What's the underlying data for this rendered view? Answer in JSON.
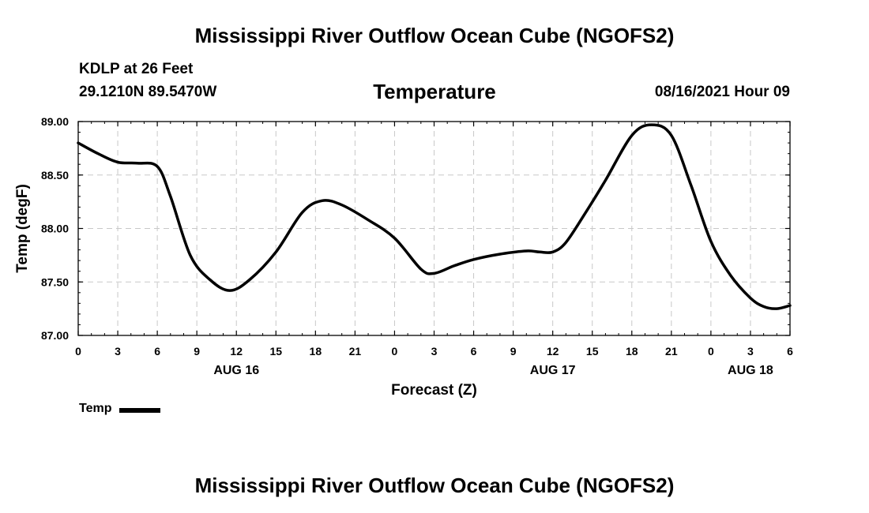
{
  "page": {
    "title_top": "Mississippi River Outflow Ocean Cube (NGOFS2)",
    "station": "KDLP at 26 Feet",
    "coords": "29.1210N  89.5470W",
    "subtitle": "Temperature",
    "datetime": "08/16/2021 Hour 09",
    "title_bottom": "Mississippi River Outflow Ocean Cube (NGOFS2)"
  },
  "legend": {
    "label": "Temp"
  },
  "chart_data": {
    "type": "line",
    "title": "Temperature",
    "xlabel": "Forecast (Z)",
    "ylabel": "Temp (degF)",
    "xlim": [
      0,
      54
    ],
    "ylim": [
      87.0,
      89.0
    ],
    "x_ticks": [
      0,
      3,
      6,
      9,
      12,
      15,
      18,
      21,
      24,
      27,
      30,
      33,
      36,
      39,
      42,
      45,
      48,
      51,
      54
    ],
    "x_tick_labels": [
      "0",
      "3",
      "6",
      "9",
      "12",
      "15",
      "18",
      "21",
      "0",
      "3",
      "6",
      "9",
      "12",
      "15",
      "18",
      "21",
      "0",
      "3",
      "6"
    ],
    "y_ticks": [
      87.0,
      87.5,
      88.0,
      88.5,
      89.0
    ],
    "y_tick_labels": [
      "87.00",
      "87.50",
      "88.00",
      "88.50",
      "89.00"
    ],
    "date_labels": [
      {
        "x": 12,
        "label": "AUG 16"
      },
      {
        "x": 36,
        "label": "AUG 17"
      },
      {
        "x": 51,
        "label": "AUG 18"
      }
    ],
    "grid": true,
    "legend_position": "bottom-left",
    "series": [
      {
        "name": "Temp",
        "color": "#000000",
        "x": [
          0,
          1.5,
          3,
          4.5,
          6,
          7,
          8.5,
          10,
          11.5,
          13,
          15,
          17,
          18.5,
          20,
          22,
          24,
          26,
          27,
          28.5,
          30,
          32,
          34,
          35,
          36,
          37,
          38.5,
          40,
          42,
          43.5,
          45,
          46.5,
          48,
          49.5,
          51,
          52,
          53,
          54
        ],
        "values": [
          88.8,
          88.7,
          88.62,
          88.61,
          88.58,
          88.3,
          87.75,
          87.52,
          87.42,
          87.52,
          87.78,
          88.15,
          88.26,
          88.22,
          88.08,
          87.91,
          87.62,
          87.58,
          87.65,
          87.71,
          87.76,
          87.79,
          87.78,
          87.78,
          87.87,
          88.15,
          88.45,
          88.87,
          88.97,
          88.87,
          88.4,
          87.88,
          87.56,
          87.35,
          87.27,
          87.25,
          87.28
        ]
      }
    ]
  }
}
